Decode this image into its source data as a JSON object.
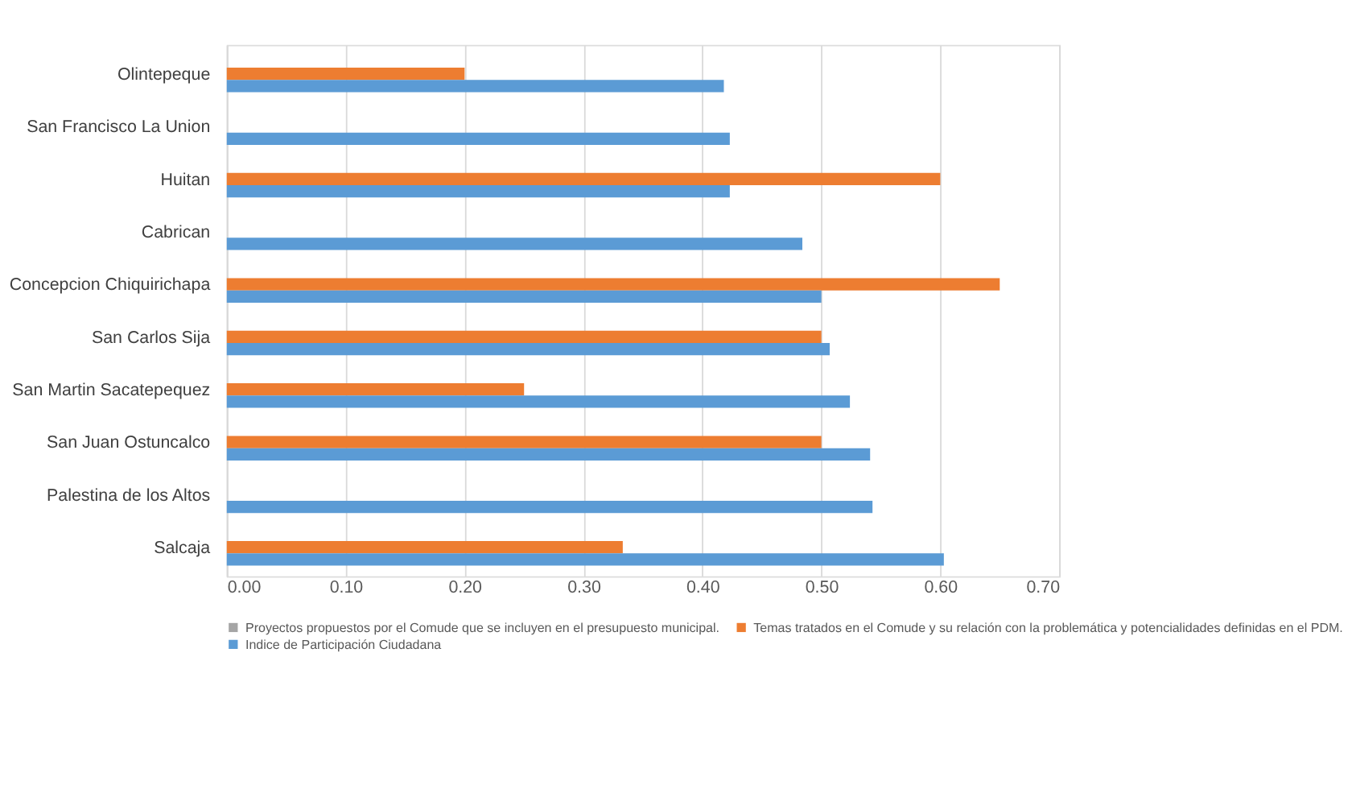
{
  "chart_data": {
    "type": "bar",
    "orientation": "horizontal",
    "categories": [
      "Olintepeque",
      "San Francisco La Union",
      "Huitan",
      "Cabrican",
      "Concepcion Chiquirichapa",
      "San Carlos Sija",
      "San Martin Sacatepequez",
      "San Juan Ostuncalco",
      "Palestina de los Altos",
      "Salcaja"
    ],
    "series": [
      {
        "name": "Proyectos propuestos por el Comude que se incluyen en el presupuesto municipal.",
        "color": "#a5a5a5",
        "values": [
          null,
          null,
          null,
          null,
          null,
          null,
          null,
          null,
          null,
          null
        ]
      },
      {
        "name": "Temas tratados en el Comude y su relación con la problemática y potencialidades definidas en el PDM.",
        "color": "#ed7d31",
        "values": [
          0.2,
          null,
          0.6,
          null,
          0.65,
          0.5,
          0.25,
          0.5,
          null,
          0.333
        ]
      },
      {
        "name": "Indice de Participación Ciudadana",
        "color": "#5b9bd5",
        "values": [
          0.418,
          0.423,
          0.423,
          0.484,
          0.5,
          0.507,
          0.524,
          0.541,
          0.543,
          0.603
        ]
      }
    ],
    "xlim": [
      0,
      0.7
    ],
    "xticks": [
      {
        "value": 0,
        "label": "0.00"
      },
      {
        "value": 0.1,
        "label": "0.10"
      },
      {
        "value": 0.2,
        "label": "0.20"
      },
      {
        "value": 0.3,
        "label": "0.30"
      },
      {
        "value": 0.4,
        "label": "0.40"
      },
      {
        "value": 0.5,
        "label": "0.50"
      },
      {
        "value": 0.6,
        "label": "0.60"
      },
      {
        "value": 0.7,
        "label": "0.70"
      }
    ],
    "grid": "x",
    "legend": "bottom"
  }
}
